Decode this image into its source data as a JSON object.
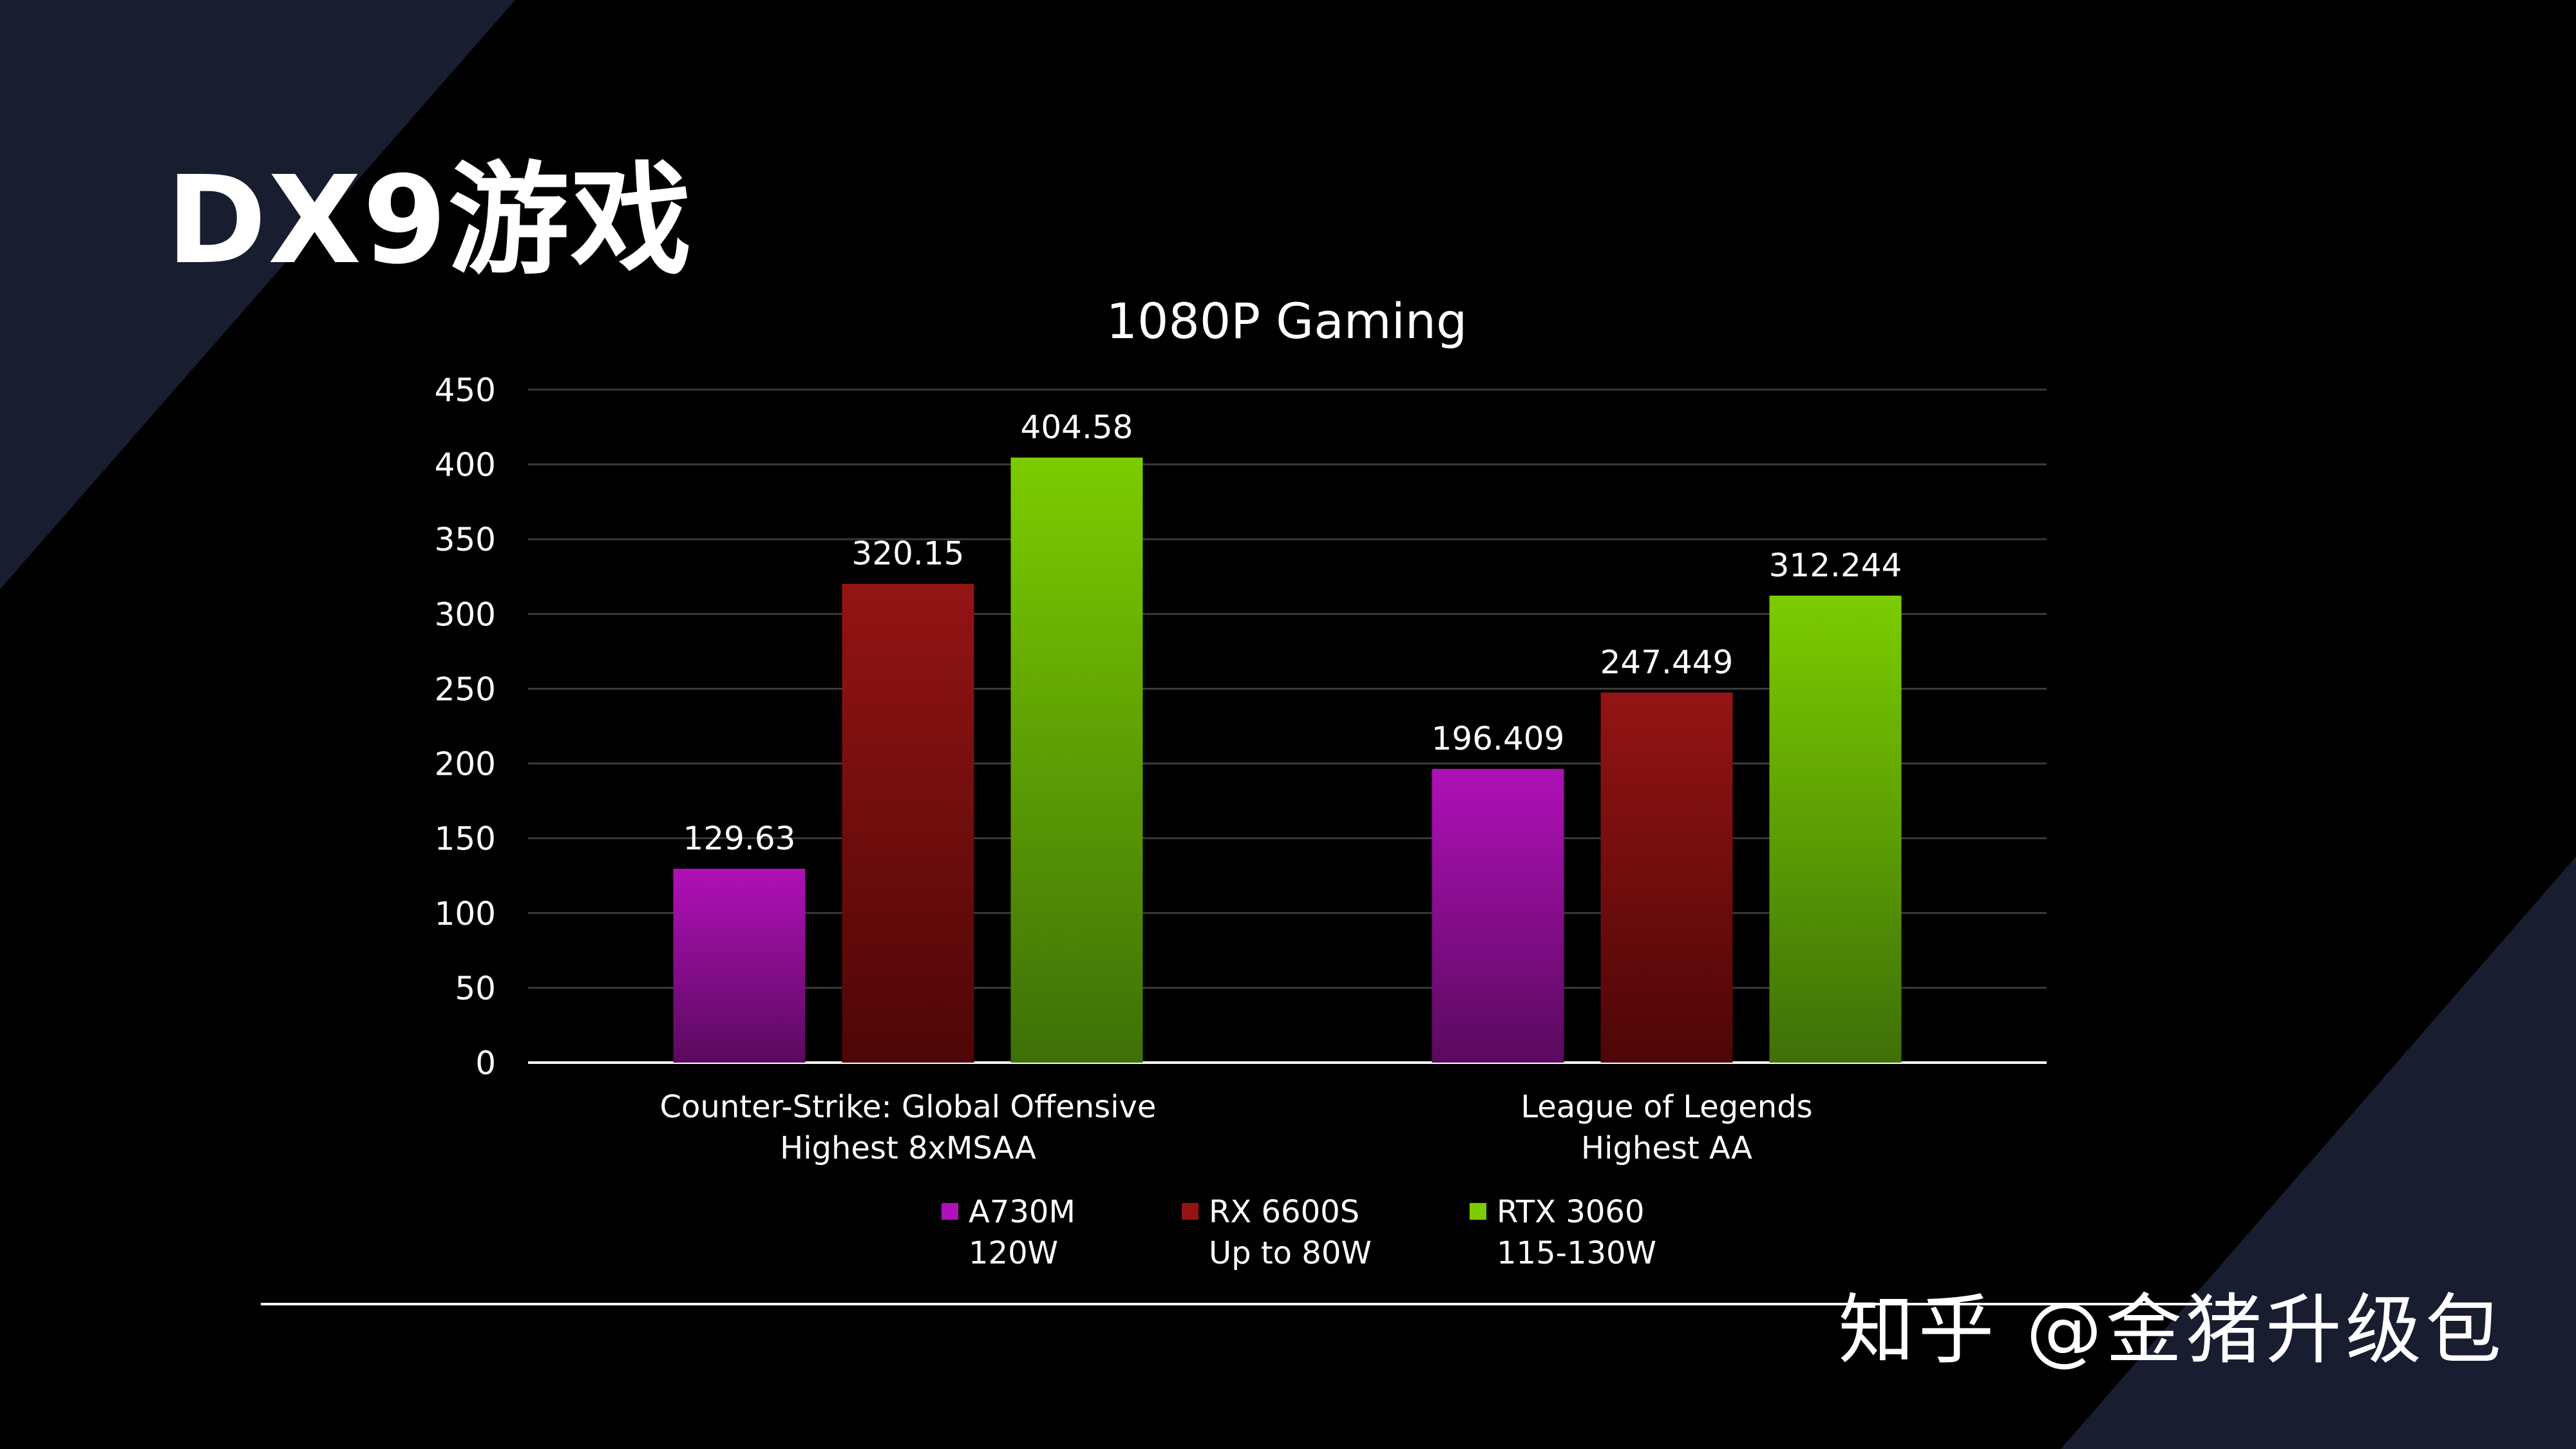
{
  "slide": {
    "title": "DX9游戏",
    "watermark": "知乎 @金猪升级包"
  },
  "chart_data": {
    "type": "bar",
    "title": "1080P Gaming",
    "categories": [
      [
        "Counter-Strike: Global Offensive",
        "Highest 8xMSAA"
      ],
      [
        "League of Legends",
        "Highest AA"
      ]
    ],
    "series": [
      {
        "name": [
          "A730M",
          "120W"
        ],
        "values": [
          129.63,
          196.409
        ],
        "labels": [
          "129.63",
          "196.409"
        ],
        "color_top": "#b010b8",
        "color_bottom": "#5a0a5e"
      },
      {
        "name": [
          "RX 6600S",
          "Up to 80W"
        ],
        "values": [
          320.15,
          247.449
        ],
        "labels": [
          "320.15",
          "247.449"
        ],
        "color_top": "#941414",
        "color_bottom": "#4e0606"
      },
      {
        "name": [
          "RTX 3060",
          "115-130W"
        ],
        "values": [
          404.58,
          312.244
        ],
        "labels": [
          "404.58",
          "312.244"
        ],
        "color_top": "#7ccc00",
        "color_bottom": "#3e7008"
      }
    ],
    "yticks": [
      0,
      50,
      100,
      150,
      200,
      250,
      300,
      350,
      400,
      450
    ],
    "ylim": [
      0,
      450
    ],
    "grid": true,
    "legend": "bottom"
  },
  "colors": {
    "background": "#000000",
    "panel": "#181d2f",
    "text": "#ffffff",
    "grid": "#3a3a3a"
  }
}
